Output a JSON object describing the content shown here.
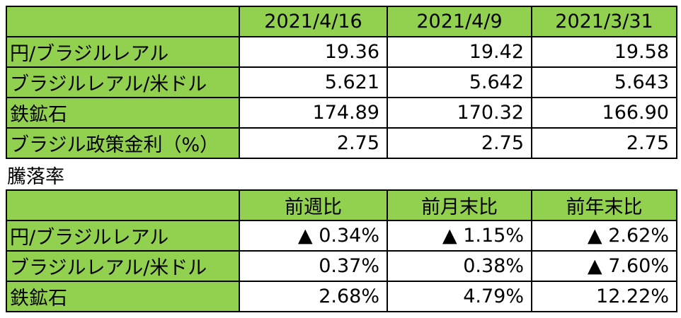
{
  "table1": {
    "columns": [
      "2021/4/16",
      "2021/4/9",
      "2021/3/31"
    ],
    "rows": [
      {
        "label": "円/ブラジルレアル",
        "cells": [
          "19.36",
          "19.42",
          "19.58"
        ]
      },
      {
        "label": "ブラジルレアル/米ドル",
        "cells": [
          "5.621",
          "5.642",
          "5.643"
        ]
      },
      {
        "label": "鉄鉱石",
        "cells": [
          "174.89",
          "170.32",
          "166.90"
        ]
      },
      {
        "label": "ブラジル政策金利（%）",
        "cells": [
          "2.75",
          "2.75",
          "2.75"
        ]
      }
    ]
  },
  "section_label": "騰落率",
  "table2": {
    "columns": [
      "前週比",
      "前月末比",
      "前年末比"
    ],
    "rows": [
      {
        "label": "円/ブラジルレアル",
        "cells": [
          "▲ 0.34%",
          "▲ 1.15%",
          "▲ 2.62%"
        ]
      },
      {
        "label": "ブラジルレアル/米ドル",
        "cells": [
          "0.37%",
          "0.38%",
          "▲ 7.60%"
        ]
      },
      {
        "label": "鉄鉱石",
        "cells": [
          "2.68%",
          "4.79%",
          "12.22%"
        ]
      }
    ]
  }
}
